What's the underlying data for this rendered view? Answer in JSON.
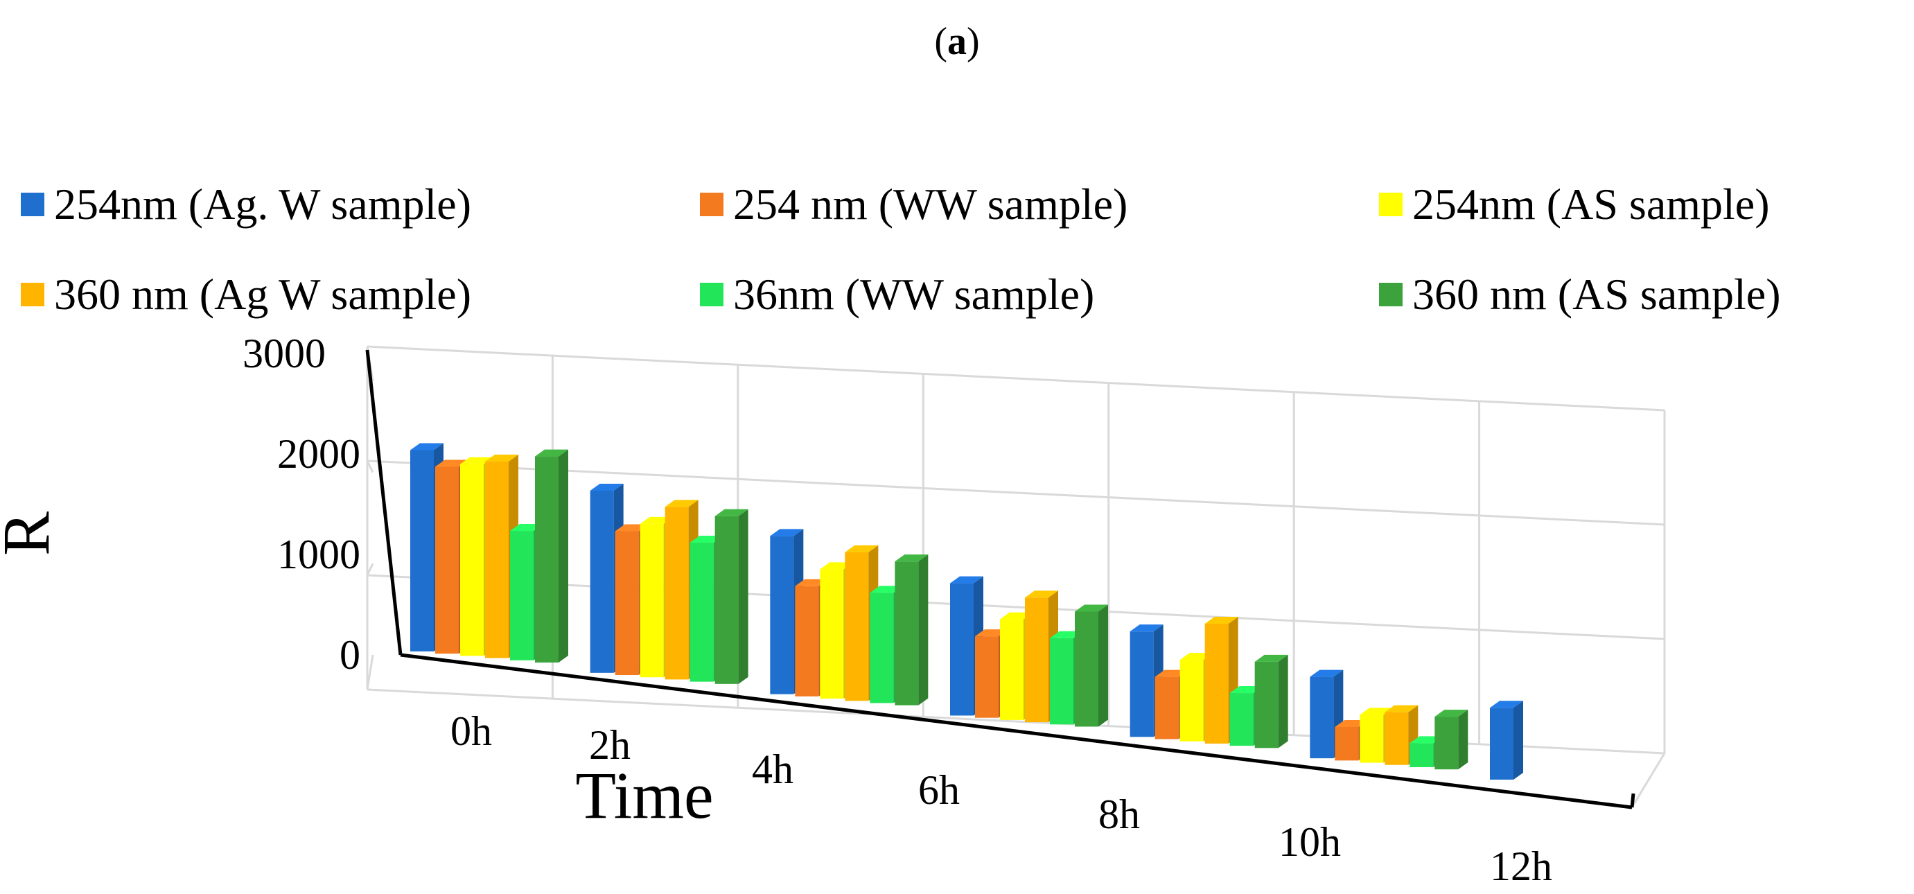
{
  "panel_label": {
    "open": "(",
    "letter": "a",
    "close": ")"
  },
  "chart_data": {
    "type": "bar",
    "style": "3d-clustered-column",
    "title": "",
    "xlabel": "Time",
    "ylabel": "R",
    "ylim": [
      0,
      3000
    ],
    "yticks": [
      "0",
      "1000",
      "2000",
      "3000"
    ],
    "categories": [
      "0h",
      "2h",
      "4h",
      "6h",
      "8h",
      "10h",
      "12h"
    ],
    "legend_position": "top",
    "grid": true,
    "series": [
      {
        "name": "254nm (Ag. W sample)",
        "color": "#1f6fcf",
        "values": [
          2100,
          1900,
          1650,
          1380,
          1100,
          850,
          750
        ]
      },
      {
        "name": "254 nm (WW sample)",
        "color": "#f47a20",
        "values": [
          1950,
          1500,
          1150,
          850,
          650,
          350,
          0
        ]
      },
      {
        "name": "254nm (AS sample)",
        "color": "#ffff00",
        "values": [
          2000,
          1600,
          1350,
          1050,
          850,
          500,
          0
        ]
      },
      {
        "name": "360 nm (Ag W sample)",
        "color": "#ffb400",
        "values": [
          2050,
          1800,
          1550,
          1300,
          1250,
          550,
          0
        ]
      },
      {
        "name": "36nm (WW sample)",
        "color": "#22e55a",
        "values": [
          1350,
          1450,
          1150,
          900,
          550,
          250,
          0
        ]
      },
      {
        "name": "360 nm (AS sample)",
        "color": "#3ca33c",
        "values": [
          2150,
          1750,
          1500,
          1200,
          900,
          550,
          0
        ]
      }
    ]
  }
}
